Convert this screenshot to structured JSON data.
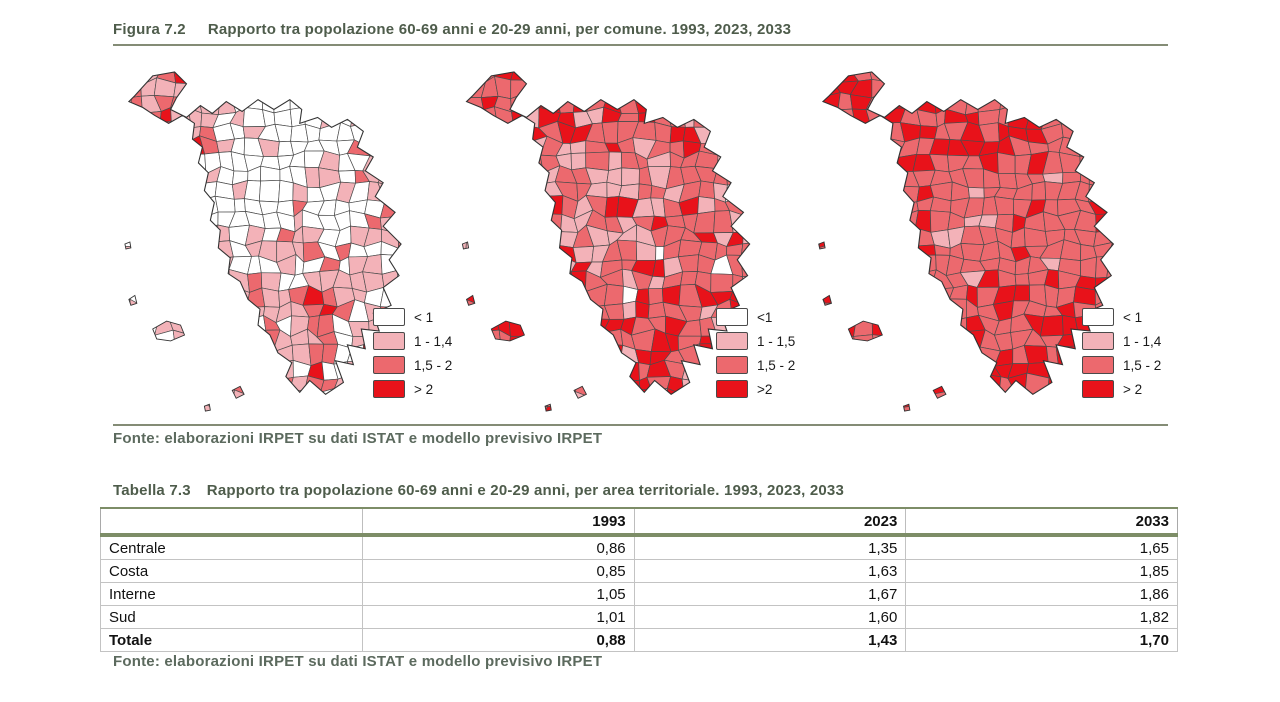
{
  "figure": {
    "caption_label": "Figura 7.2",
    "caption_text": "Rapporto tra popolazione 60-69 anni e 20-29 anni, per comune. 1993, 2023, 2033",
    "source": "Fonte: elaborazioni IRPET su dati ISTAT e modello previsivo IRPET",
    "class_colors": [
      "#ffffff",
      "#f3b2b8",
      "#ec696e",
      "#e8121a"
    ],
    "accent_green": "#4e5c4b",
    "rule_green": "#848c76",
    "table_rule_green": "#7d8d67",
    "maps": [
      {
        "year": "1993",
        "legend": [
          "< 1",
          "1 - 1,4",
          "1,5 - 2",
          "> 2"
        ]
      },
      {
        "year": "2023",
        "legend": [
          "<1",
          "1 - 1,5",
          "1,5 - 2",
          ">2"
        ]
      },
      {
        "year": "2033",
        "legend": [
          "< 1",
          "1 - 1,4",
          "1,5 - 2",
          "> 2"
        ]
      }
    ]
  },
  "table": {
    "caption_label": "Tabella 7.3",
    "caption_text": "Rapporto tra popolazione 60-69 anni e 20-29 anni, per area territoriale. 1993, 2023, 2033",
    "columns": [
      "",
      "1993",
      "2023",
      "2033"
    ],
    "rows": [
      {
        "label": "Centrale",
        "values": [
          "0,86",
          "1,35",
          "1,65"
        ]
      },
      {
        "label": "Costa",
        "values": [
          "0,85",
          "1,63",
          "1,85"
        ]
      },
      {
        "label": "Interne",
        "values": [
          "1,05",
          "1,67",
          "1,86"
        ]
      },
      {
        "label": "Sud",
        "values": [
          "1,01",
          "1,60",
          "1,82"
        ]
      },
      {
        "label": "Totale",
        "values": [
          "0,88",
          "1,43",
          "1,70"
        ]
      }
    ],
    "source": "Fonte: elaborazioni IRPET su dati ISTAT e modello previsivo IRPET"
  },
  "chart_data": [
    {
      "type": "heatmap",
      "subtype": "choropleth-map-series",
      "title": "Rapporto tra popolazione 60-69 anni e 20-29 anni, per comune. 1993, 2023, 2033",
      "maps": [
        {
          "year": "1993",
          "classes": [
            "< 1",
            "1 - 1,4",
            "1,5 - 2",
            "> 2"
          ]
        },
        {
          "year": "2023",
          "classes": [
            "<1",
            "1 - 1,5",
            "1,5 - 2",
            ">2"
          ]
        },
        {
          "year": "2033",
          "classes": [
            "< 1",
            "1 - 1,4",
            "1,5 - 2",
            "> 2"
          ]
        }
      ],
      "class_colors": [
        "#ffffff",
        "#f3b2b8",
        "#ec696e",
        "#e8121a"
      ],
      "legend_position": "right-bottom of each map"
    },
    {
      "type": "table",
      "title": "Rapporto tra popolazione 60-69 anni e 20-29 anni, per area territoriale. 1993, 2023, 2033",
      "columns": [
        "",
        "1993",
        "2023",
        "2033"
      ],
      "rows": [
        [
          "Centrale",
          "0,86",
          "1,35",
          "1,65"
        ],
        [
          "Costa",
          "0,85",
          "1,63",
          "1,85"
        ],
        [
          "Interne",
          "1,05",
          "1,67",
          "1,86"
        ],
        [
          "Sud",
          "1,01",
          "1,60",
          "1,82"
        ],
        [
          "Totale",
          "0,88",
          "1,43",
          "1,70"
        ]
      ]
    }
  ]
}
